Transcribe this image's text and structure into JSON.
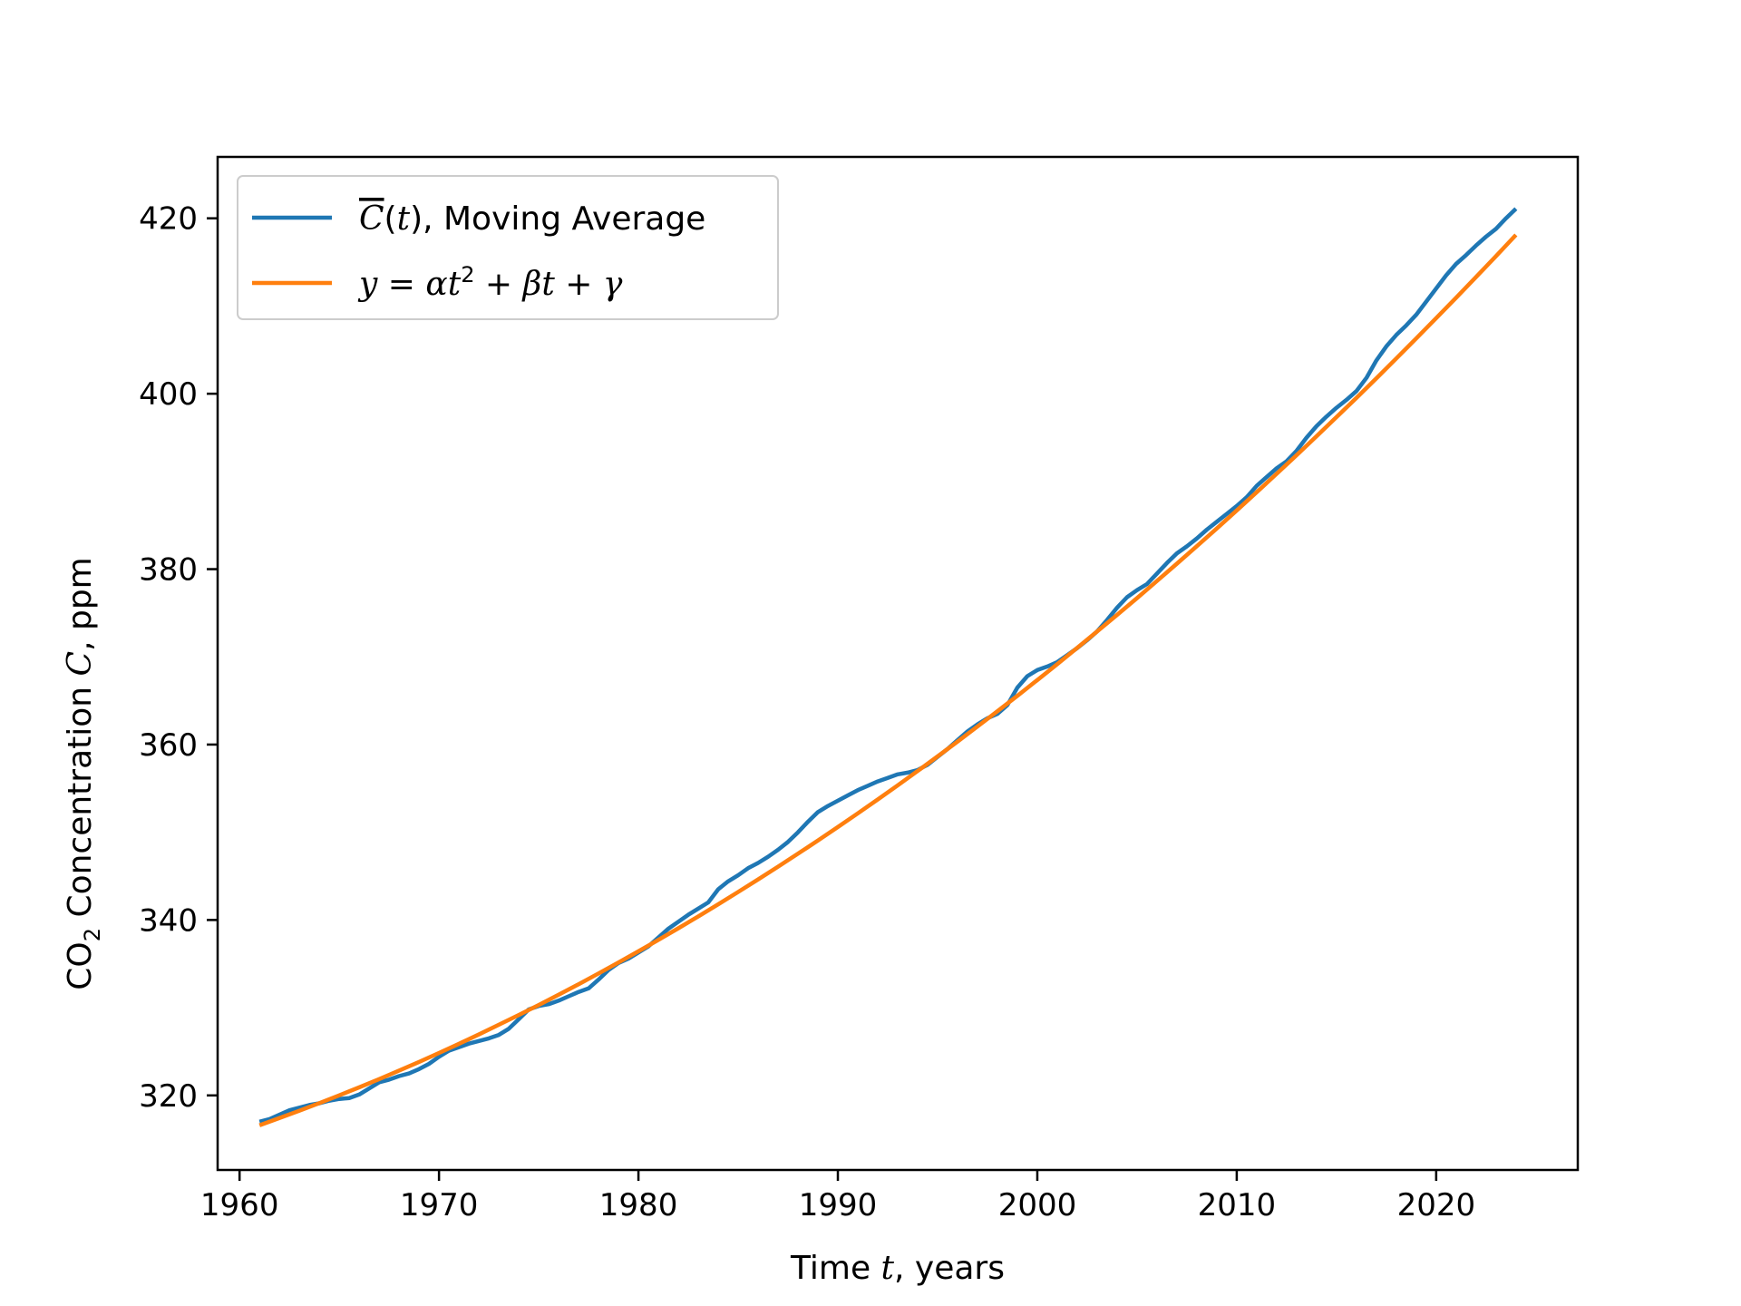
{
  "chart_data": {
    "type": "line",
    "xlabel": "Time t, years",
    "ylabel": "CO2 Concentration C, ppm",
    "xlim": [
      1958.9,
      2027.1
    ],
    "ylim": [
      311.5,
      427.0
    ],
    "xticks": [
      1960,
      1970,
      1980,
      1990,
      2000,
      2010,
      2020
    ],
    "yticks": [
      320,
      340,
      360,
      380,
      400,
      420
    ],
    "grid": false,
    "legend_position": "top-left",
    "series": [
      {
        "name": "C̄(t), Moving Average",
        "color": "#1f77b4",
        "x": [
          1961.0,
          1961.5,
          1962.0,
          1962.5,
          1963.0,
          1963.5,
          1964.0,
          1964.5,
          1965.0,
          1965.5,
          1966.0,
          1966.5,
          1967.0,
          1967.5,
          1968.0,
          1968.5,
          1969.0,
          1969.5,
          1970.0,
          1970.5,
          1971.0,
          1971.5,
          1972.0,
          1972.5,
          1973.0,
          1973.5,
          1974.0,
          1974.5,
          1975.0,
          1975.5,
          1976.0,
          1976.5,
          1977.0,
          1977.5,
          1978.0,
          1978.5,
          1979.0,
          1979.5,
          1980.0,
          1980.5,
          1981.0,
          1981.5,
          1982.0,
          1982.5,
          1983.0,
          1983.5,
          1984.0,
          1984.5,
          1985.0,
          1985.5,
          1986.0,
          1986.5,
          1987.0,
          1987.5,
          1988.0,
          1988.5,
          1989.0,
          1989.5,
          1990.0,
          1990.5,
          1991.0,
          1991.5,
          1992.0,
          1992.5,
          1993.0,
          1993.5,
          1994.0,
          1994.5,
          1995.0,
          1995.5,
          1996.0,
          1996.5,
          1997.0,
          1997.5,
          1998.0,
          1998.5,
          1999.0,
          1999.5,
          2000.0,
          2000.5,
          2001.0,
          2001.5,
          2002.0,
          2002.5,
          2003.0,
          2003.5,
          2004.0,
          2004.5,
          2005.0,
          2005.5,
          2006.0,
          2006.5,
          2007.0,
          2007.5,
          2008.0,
          2008.5,
          2009.0,
          2009.5,
          2010.0,
          2010.5,
          2011.0,
          2011.5,
          2012.0,
          2012.5,
          2013.0,
          2013.5,
          2014.0,
          2014.5,
          2015.0,
          2015.5,
          2016.0,
          2016.5,
          2017.0,
          2017.5,
          2018.0,
          2018.5,
          2019.0,
          2019.5,
          2020.0,
          2020.5,
          2021.0,
          2021.5,
          2022.0,
          2022.5,
          2023.0,
          2023.5,
          2024.0
        ],
        "y": [
          317.0,
          317.3,
          317.8,
          318.3,
          318.6,
          318.9,
          319.1,
          319.4,
          319.6,
          319.7,
          320.1,
          320.8,
          321.5,
          321.8,
          322.2,
          322.5,
          323.0,
          323.6,
          324.4,
          325.1,
          325.5,
          325.9,
          326.2,
          326.5,
          326.9,
          327.6,
          328.7,
          329.8,
          330.2,
          330.4,
          330.8,
          331.3,
          331.8,
          332.2,
          333.2,
          334.3,
          335.1,
          335.6,
          336.3,
          337.0,
          338.0,
          339.0,
          339.8,
          340.6,
          341.3,
          342.0,
          343.5,
          344.4,
          345.1,
          345.9,
          346.5,
          347.2,
          348.0,
          348.9,
          350.0,
          351.2,
          352.3,
          353.0,
          353.6,
          354.2,
          354.8,
          355.3,
          355.8,
          356.2,
          356.6,
          356.8,
          357.1,
          357.7,
          358.6,
          359.5,
          360.5,
          361.5,
          362.3,
          363.0,
          363.5,
          364.5,
          366.5,
          367.8,
          368.5,
          368.9,
          369.4,
          370.2,
          371.0,
          371.9,
          372.9,
          374.2,
          375.6,
          376.8,
          377.6,
          378.3,
          379.5,
          380.7,
          381.8,
          382.6,
          383.5,
          384.5,
          385.4,
          386.3,
          387.2,
          388.2,
          389.5,
          390.5,
          391.5,
          392.3,
          393.5,
          395.0,
          396.3,
          397.4,
          398.4,
          399.3,
          400.3,
          401.8,
          403.8,
          405.4,
          406.7,
          407.8,
          409.0,
          410.5,
          412.0,
          413.5,
          414.8,
          415.8,
          416.9,
          417.9,
          418.8,
          420.0,
          421.1
        ]
      },
      {
        "name": "y = αt² + βt + γ",
        "color": "#ff7f0e",
        "fit": {
          "a": 0.01283,
          "b": 0.8,
          "t0": 1961.0,
          "c": 316.6
        },
        "x": [
          1961.0,
          1962.0,
          1963.0,
          1964.0,
          1965.0,
          1966.0,
          1967.0,
          1968.0,
          1969.0,
          1970.0,
          1971.0,
          1972.0,
          1973.0,
          1974.0,
          1975.0,
          1976.0,
          1977.0,
          1978.0,
          1979.0,
          1980.0,
          1981.0,
          1982.0,
          1983.0,
          1984.0,
          1985.0,
          1986.0,
          1987.0,
          1988.0,
          1989.0,
          1990.0,
          1991.0,
          1992.0,
          1993.0,
          1994.0,
          1995.0,
          1996.0,
          1997.0,
          1998.0,
          1999.0,
          2000.0,
          2001.0,
          2002.0,
          2003.0,
          2004.0,
          2005.0,
          2006.0,
          2007.0,
          2008.0,
          2009.0,
          2010.0,
          2011.0,
          2012.0,
          2013.0,
          2014.0,
          2015.0,
          2016.0,
          2017.0,
          2018.0,
          2019.0,
          2020.0,
          2021.0,
          2022.0,
          2023.0,
          2024.0
        ],
        "y": [
          316.6,
          317.41,
          318.25,
          319.12,
          320.01,
          320.92,
          321.86,
          322.83,
          323.82,
          324.84,
          325.88,
          326.95,
          328.05,
          329.17,
          330.31,
          331.49,
          332.68,
          333.91,
          335.16,
          336.43,
          337.73,
          339.06,
          340.41,
          341.79,
          343.19,
          344.62,
          346.08,
          347.56,
          349.06,
          350.6,
          352.16,
          353.74,
          355.35,
          356.99,
          358.65,
          360.34,
          362.06,
          363.8,
          365.56,
          367.36,
          369.17,
          371.02,
          372.89,
          374.78,
          376.7,
          378.65,
          380.62,
          382.62,
          384.64,
          386.69,
          388.77,
          390.87,
          392.99,
          395.15,
          397.33,
          399.53,
          401.76,
          404.02,
          406.3,
          408.61,
          410.94,
          413.31,
          415.69,
          418.11
        ]
      }
    ]
  },
  "legend_labels": {
    "moving_average_suffix": ", Moving Average"
  },
  "axis_text": {
    "ylabel_prefix": "CO",
    "ylabel_subscript": "2",
    "ylabel_mid": " Concentration ",
    "ylabel_var": "C",
    "ylabel_suffix": ", ppm",
    "xlabel_prefix": "Time ",
    "xlabel_var": "t",
    "xlabel_suffix": ", years"
  }
}
